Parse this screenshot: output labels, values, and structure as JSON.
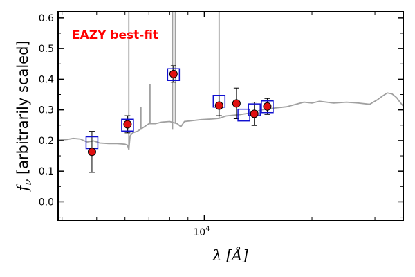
{
  "chart_data": {
    "type": "scatter",
    "xlabel": "λ [Å]",
    "ylabel": "f_ν [arbitrarily scaled]",
    "ylabel_symbol": "f",
    "ylabel_subscript": "ν",
    "ylabel_text": " [arbitrarily scaled]",
    "xscale": "log",
    "xlim": [
      3900,
      36000
    ],
    "ylim": [
      -0.06,
      0.62
    ],
    "yticks": [
      0.0,
      0.1,
      0.2,
      0.3,
      0.4,
      0.5,
      0.6
    ],
    "ytick_labels": [
      "0.0",
      "0.1",
      "0.2",
      "0.3",
      "0.4",
      "0.5",
      "0.6"
    ],
    "xtick_labels": [
      {
        "value": 10000,
        "base": "10",
        "exp": "4"
      }
    ],
    "annotation": {
      "text": "EAZY best-fit",
      "color": "#ff0000"
    },
    "colors": {
      "model": "#a0a0a0",
      "observed": "#e01010",
      "model_box": "#1010d0"
    },
    "model_spectrum": {
      "name": "",
      "x": [
        3900,
        4100,
        4300,
        4500,
        4700,
        4900,
        5100,
        5400,
        5700,
        6000,
        6100,
        6150,
        6200,
        6300,
        6500,
        6600,
        6800,
        7000,
        7300,
        7600,
        8000,
        8400,
        8600,
        8800,
        9300,
        9800,
        10500,
        11000,
        11500,
        12500,
        13500,
        14500,
        15500,
        17000,
        18000,
        19000,
        20000,
        21000,
        23000,
        25000,
        27000,
        29000,
        30500,
        31500,
        32500,
        33500,
        34500,
        35000,
        36000
      ],
      "y": [
        0.205,
        0.203,
        0.207,
        0.205,
        0.195,
        0.199,
        0.192,
        0.19,
        0.19,
        0.188,
        0.185,
        0.17,
        0.215,
        0.225,
        0.23,
        0.235,
        0.245,
        0.255,
        0.255,
        0.26,
        0.262,
        0.255,
        0.245,
        0.262,
        0.265,
        0.268,
        0.27,
        0.272,
        0.28,
        0.284,
        0.29,
        0.3,
        0.305,
        0.31,
        0.318,
        0.325,
        0.322,
        0.328,
        0.322,
        0.325,
        0.322,
        0.318,
        0.333,
        0.345,
        0.355,
        0.352,
        0.34,
        0.33,
        0.312
      ]
    },
    "emission_lines": [
      {
        "x": 6150,
        "y0": 0.17,
        "y1": 0.62
      },
      {
        "x": 6650,
        "y0": 0.235,
        "y1": 0.31
      },
      {
        "x": 7050,
        "y0": 0.255,
        "y1": 0.385
      },
      {
        "x": 8150,
        "y0": 0.235,
        "y1": 0.62
      },
      {
        "x": 8300,
        "y0": 0.255,
        "y1": 0.62
      },
      {
        "x": 11000,
        "y0": 0.272,
        "y1": 0.62
      }
    ],
    "model_photometry": {
      "name": "",
      "x": [
        4850,
        6100,
        8200,
        11000,
        12900,
        13800,
        15000
      ],
      "y": [
        0.193,
        0.25,
        0.415,
        0.328,
        0.283,
        0.3,
        0.31
      ]
    },
    "observed_photometry": {
      "name": "",
      "x": [
        4850,
        6100,
        8200,
        11000,
        12300,
        13800,
        15000
      ],
      "y": [
        0.163,
        0.253,
        0.417,
        0.314,
        0.321,
        0.287,
        0.311
      ],
      "yerr": [
        0.067,
        0.028,
        0.027,
        0.033,
        0.05,
        0.038,
        0.026
      ]
    }
  }
}
